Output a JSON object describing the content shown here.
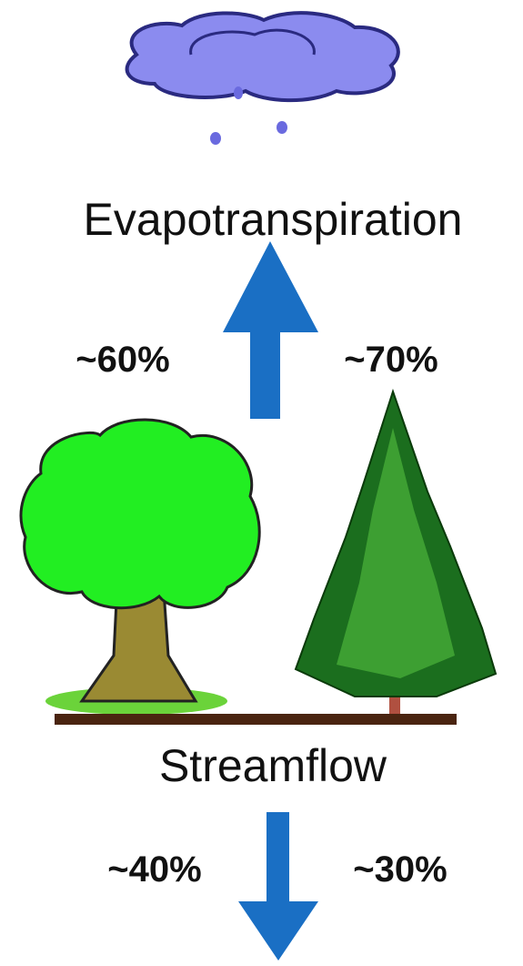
{
  "flows": [
    {
      "label": "Evapotranspiration",
      "deciduous": "~60%",
      "conifer": "~70%"
    },
    {
      "label": "Streamflow",
      "deciduous": "~40%",
      "conifer": "~30%"
    }
  ]
}
